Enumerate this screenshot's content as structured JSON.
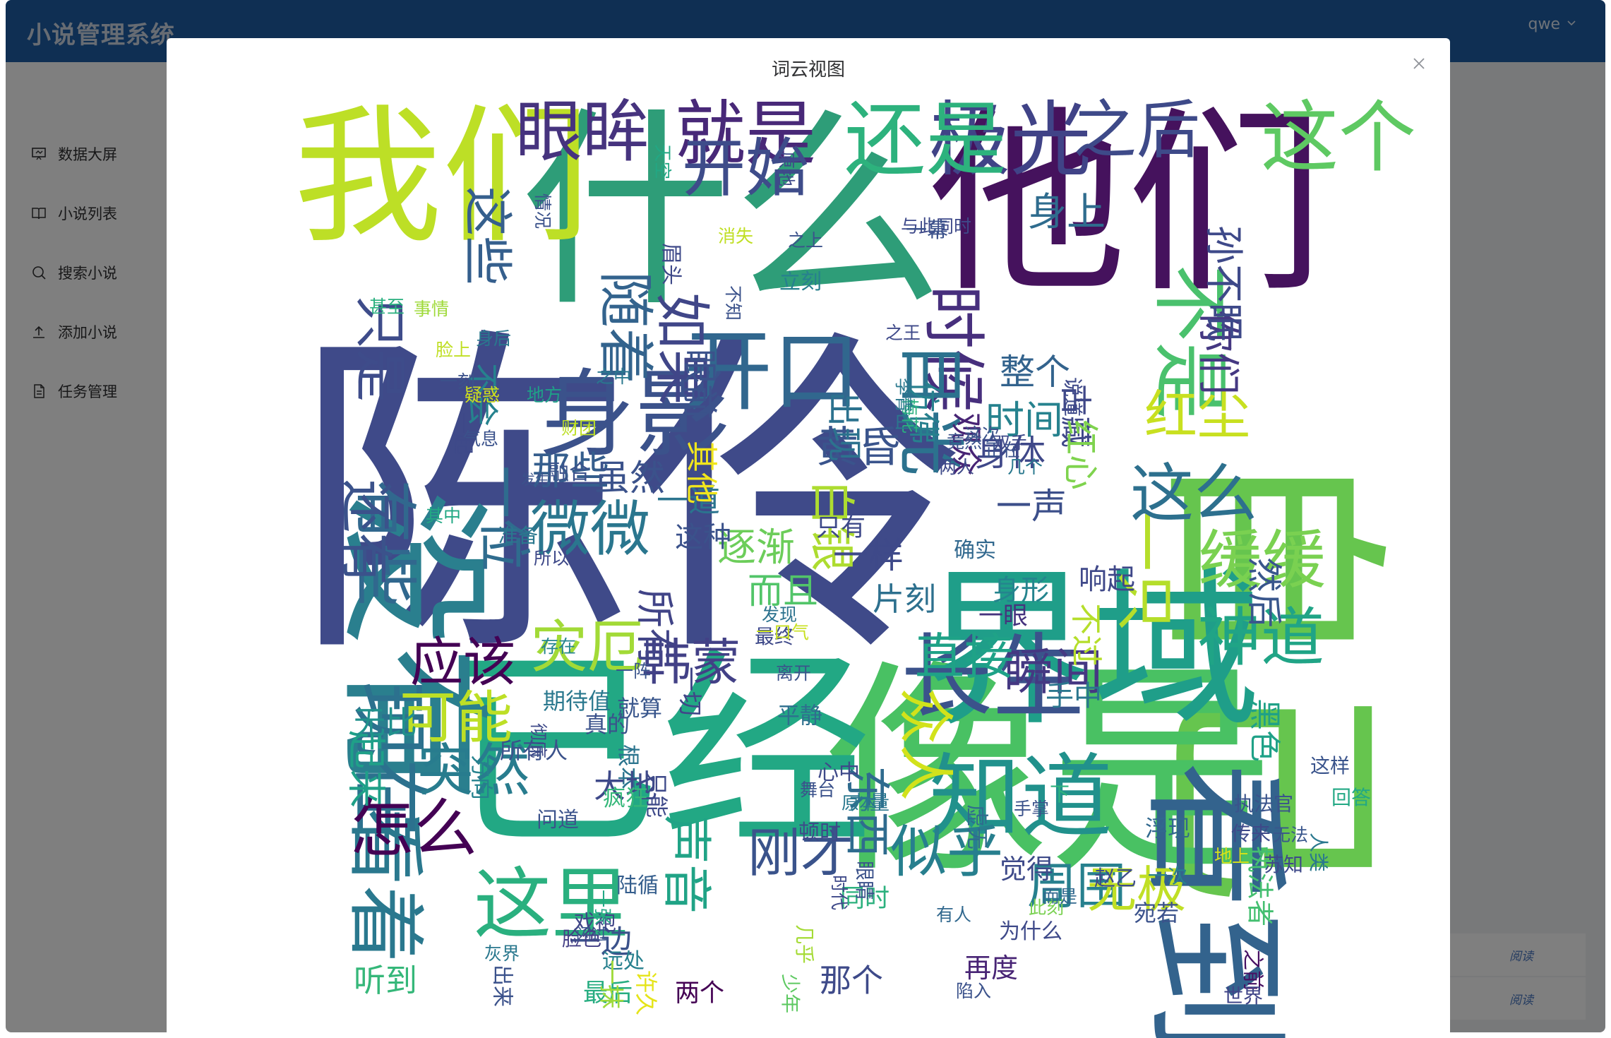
{
  "app": {
    "title": "小说管理系统",
    "user": "qwe"
  },
  "sidebar": {
    "items": [
      {
        "label": "数据大屏",
        "icon": "dashboard-screen-icon"
      },
      {
        "label": "小说列表",
        "icon": "book-icon"
      },
      {
        "label": "搜索小说",
        "icon": "search-icon"
      },
      {
        "label": "添加小说",
        "icon": "upload-icon"
      },
      {
        "label": "任务管理",
        "icon": "document-icon"
      }
    ]
  },
  "table": {
    "read_links": [
      "阅读",
      "阅读"
    ]
  },
  "modal": {
    "title": "词云视图"
  },
  "colors": {
    "header": "#1f5fa6",
    "palette": "viridis"
  },
  "word_cloud": [
    {
      "t": "陈伶",
      "c": "#3f4a89"
    },
    {
      "t": "什么",
      "c": "#2e9d78"
    },
    {
      "t": "他们",
      "c": "#45125d"
    },
    {
      "t": "自己",
      "c": "#66c54e"
    },
    {
      "t": "像是",
      "c": "#49c163"
    },
    {
      "t": "已经",
      "c": "#22a884"
    },
    {
      "t": "没有",
      "c": "#2a7f8e"
    },
    {
      "t": "我们",
      "c": "#bddf26"
    },
    {
      "t": "界域",
      "c": "#1f9e89"
    },
    {
      "t": "看到",
      "c": "#33638d"
    },
    {
      "t": "身影",
      "c": "#3b528b"
    },
    {
      "t": "开口",
      "c": "#31678e"
    },
    {
      "t": "现在",
      "c": "#2c718e"
    },
    {
      "t": "知道",
      "c": "#21918c"
    },
    {
      "t": "长生",
      "c": "#3b528b"
    },
    {
      "t": "看着",
      "c": "#2a788e"
    },
    {
      "t": "这里",
      "c": "#2ab07f"
    },
    {
      "t": "极光",
      "c": "#404387"
    },
    {
      "t": "还是",
      "c": "#2db27d"
    },
    {
      "t": "就是",
      "c": "#482878"
    },
    {
      "t": "这个",
      "c": "#5ec962"
    },
    {
      "t": "之后",
      "c": "#3e4a89"
    },
    {
      "t": "眼眸",
      "c": "#46337e"
    },
    {
      "t": "不是",
      "c": "#4ac16d"
    },
    {
      "t": "时候",
      "c": "#472f7d"
    },
    {
      "t": "开始",
      "c": "#3e4c8a"
    },
    {
      "t": "随着",
      "c": "#33638d"
    },
    {
      "t": "如果",
      "c": "#404688"
    },
    {
      "t": "目光",
      "c": "#2c728e"
    },
    {
      "t": "一只",
      "c": "#b5de2b"
    },
    {
      "t": "红尘",
      "c": "#c8e020"
    },
    {
      "t": "这么",
      "c": "#2d708e"
    },
    {
      "t": "缓缓",
      "c": "#7ad151"
    },
    {
      "t": "神道",
      "c": "#20a486"
    },
    {
      "t": "微微",
      "c": "#2a768e"
    },
    {
      "t": "有些",
      "c": "#31688e"
    },
    {
      "t": "还有",
      "c": "#3b528b"
    },
    {
      "t": "一位",
      "c": "#2f6c8e"
    },
    {
      "t": "只是",
      "c": "#3e4c8a"
    },
    {
      "t": "这些",
      "c": "#355f8d"
    },
    {
      "t": "怎么",
      "c": "#440154"
    },
    {
      "t": "突然",
      "c": "#287c8e"
    },
    {
      "t": "可能",
      "c": "#bddf26"
    },
    {
      "t": "应该",
      "c": "#440154"
    },
    {
      "t": "灾厄",
      "c": "#a2da37"
    },
    {
      "t": "韩蒙",
      "c": "#424086"
    },
    {
      "t": "声音",
      "c": "#20a386"
    },
    {
      "t": "刚才",
      "c": "#3a538b"
    },
    {
      "t": "似乎",
      "c": "#277f8e"
    },
    {
      "t": "周围",
      "c": "#27808e"
    },
    {
      "t": "无极",
      "c": "#c0df25"
    },
    {
      "t": "瞬间",
      "c": "#453882"
    },
    {
      "t": "直接",
      "c": "#1fa287"
    },
    {
      "t": "众人",
      "c": "#d2e21b"
    },
    {
      "t": "东西",
      "c": "#2f6b8e"
    },
    {
      "t": "黄昏",
      "c": "#3a548c"
    },
    {
      "t": "白银",
      "c": "#addc30"
    },
    {
      "t": "时间",
      "c": "#26828e"
    },
    {
      "t": "身体",
      "c": "#3f4889"
    },
    {
      "t": "一声",
      "c": "#3c4f8a"
    },
    {
      "t": "逐渐",
      "c": "#6ccd5a"
    },
    {
      "t": "一样",
      "c": "#3e4989"
    },
    {
      "t": "所有",
      "c": "#414487"
    },
    {
      "t": "而且",
      "c": "#52c569"
    },
    {
      "t": "那些",
      "c": "#355e8d"
    },
    {
      "t": "虽然",
      "c": "#3b528b"
    },
    {
      "t": "整个",
      "c": "#33638d"
    },
    {
      "t": "身上",
      "c": "#2f6c8e"
    },
    {
      "t": "眼前",
      "c": "#3b528b"
    },
    {
      "t": "出现",
      "c": "#2c728e"
    },
    {
      "t": "仿佛",
      "c": "#27808e"
    },
    {
      "t": "观众",
      "c": "#482475"
    },
    {
      "t": "古藏",
      "c": "#3f4788"
    },
    {
      "t": "红心",
      "c": "#7fd34e"
    },
    {
      "t": "你们",
      "c": "#453882"
    },
    {
      "t": "孙不眠",
      "c": "#3e4989"
    },
    {
      "t": "然后",
      "c": "#39568c"
    },
    {
      "t": "黑色",
      "c": "#1fa187"
    },
    {
      "t": "不过",
      "c": "#b5de2b"
    },
    {
      "t": "响起",
      "c": "#3f4889"
    },
    {
      "t": "片刻",
      "c": "#2d708e"
    },
    {
      "t": "起来",
      "c": "#1fa088"
    },
    {
      "t": "无比",
      "c": "#21918c"
    },
    {
      "t": "一道",
      "c": "#2b748e"
    },
    {
      "t": "这种",
      "c": "#3b528b"
    },
    {
      "t": "只有",
      "c": "#3e4989"
    },
    {
      "t": "其他",
      "c": "#f1e51d"
    },
    {
      "t": "不会",
      "c": "#26828e"
    },
    {
      "t": "一边",
      "c": "#3b528b"
    },
    {
      "t": "最后",
      "c": "#27ad81"
    },
    {
      "t": "听到",
      "c": "#35b779"
    },
    {
      "t": "两个",
      "c": "#440154"
    },
    {
      "t": "那个",
      "c": "#3e4a89"
    },
    {
      "t": "再度",
      "c": "#482475"
    },
    {
      "t": "一眼",
      "c": "#46337e"
    },
    {
      "t": "身形",
      "c": "#25848e"
    },
    {
      "t": "一切",
      "c": "#404688"
    },
    {
      "t": "平静",
      "c": "#2e6f8e"
    },
    {
      "t": "确实",
      "c": "#31688e"
    },
    {
      "t": "同时",
      "c": "#2cb17e"
    },
    {
      "t": "觉得",
      "c": "#3e4a89"
    },
    {
      "t": "浮现",
      "c": "#31688e"
    },
    {
      "t": "执法官",
      "c": "#3a538b"
    },
    {
      "t": "执法者",
      "c": "#44bf70"
    },
    {
      "t": "之前",
      "c": "#471063"
    },
    {
      "t": "世界",
      "c": "#404588"
    },
    {
      "t": "方向",
      "c": "#26828e"
    },
    {
      "t": "期待值",
      "c": "#2a788e"
    },
    {
      "t": "就算",
      "c": "#39568c"
    },
    {
      "t": "真的",
      "c": "#3b528b"
    },
    {
      "t": "根本",
      "c": "#2b748e"
    },
    {
      "t": "只能",
      "c": "#3e4989"
    },
    {
      "t": "所有人",
      "c": "#3b528b"
    },
    {
      "t": "大地",
      "c": "#3e4989"
    },
    {
      "t": "手中",
      "c": "#2a768e"
    },
    {
      "t": "疯狂",
      "c": "#35b779"
    },
    {
      "t": "问道",
      "c": "#3b528b"
    },
    {
      "t": "陆循",
      "c": "#355e8d"
    },
    {
      "t": "脸色",
      "c": "#433e85"
    },
    {
      "t": "远处",
      "c": "#27808e"
    },
    {
      "t": "一抹",
      "c": "#9fda3a"
    },
    {
      "t": "许久",
      "c": "#e5e419"
    },
    {
      "t": "戏袍",
      "c": "#404588"
    },
    {
      "t": "闪过",
      "c": "#39568c"
    },
    {
      "t": "为什么",
      "c": "#3e4989"
    },
    {
      "t": "有人",
      "c": "#31688e"
    },
    {
      "t": "陷入",
      "c": "#3b528b"
    },
    {
      "t": "此刻",
      "c": "#7ad151"
    },
    {
      "t": "而是",
      "c": "#31688e"
    },
    {
      "t": "赵乙",
      "c": "#3e4c8a"
    },
    {
      "t": "宛若",
      "c": "#3b528b"
    },
    {
      "t": "一次",
      "c": "#27808e"
    },
    {
      "t": "苏知",
      "c": "#3e4989"
    },
    {
      "t": "地上",
      "c": "#d8e219"
    },
    {
      "t": "无法",
      "c": "#39568c"
    },
    {
      "t": "传来",
      "c": "#3e4989"
    },
    {
      "t": "人类",
      "c": "#2a788e"
    },
    {
      "t": "回答",
      "c": "#22a884"
    },
    {
      "t": "这样",
      "c": "#3a548c"
    },
    {
      "t": "下",
      "c": "#2db27d"
    },
    {
      "t": "虚无",
      "c": "#2f6c8e"
    },
    {
      "t": "手掌",
      "c": "#3b528b"
    },
    {
      "t": "原本",
      "c": "#2a788e"
    },
    {
      "t": "心中",
      "c": "#3e4989"
    },
    {
      "t": "舞台",
      "c": "#3b528b"
    },
    {
      "t": "力量",
      "c": "#2a768e"
    },
    {
      "t": "顿时",
      "c": "#3e4989"
    },
    {
      "t": "眼睛",
      "c": "#3b528b"
    },
    {
      "t": "时代",
      "c": "#3e4989"
    },
    {
      "t": "几乎",
      "c": "#a5db36"
    },
    {
      "t": "少年",
      "c": "#5ec962"
    },
    {
      "t": "出来",
      "c": "#3b528b"
    },
    {
      "t": "灰界",
      "c": "#2a788e"
    },
    {
      "t": "一张",
      "c": "#22a884"
    },
    {
      "t": "存在",
      "c": "#25848e"
    },
    {
      "t": "一阵",
      "c": "#3a548c"
    },
    {
      "t": "彻底",
      "c": "#3e4989"
    },
    {
      "t": "离开",
      "c": "#3b528b"
    },
    {
      "t": "发现",
      "c": "#2c728e"
    },
    {
      "t": "最终",
      "c": "#3e4989"
    },
    {
      "t": "一口气",
      "c": "#c8e020"
    },
    {
      "t": "融合",
      "c": "#3b528b"
    },
    {
      "t": "所以",
      "c": "#3e4989"
    },
    {
      "t": "准备",
      "c": "#2a788e"
    },
    {
      "t": "其中",
      "c": "#22a884"
    },
    {
      "t": "发生",
      "c": "#3b528b"
    },
    {
      "t": "一起",
      "c": "#3e4989"
    },
    {
      "t": "气息",
      "c": "#3b528b"
    },
    {
      "t": "财团",
      "c": "#bddf26"
    },
    {
      "t": "地方",
      "c": "#1fa088"
    },
    {
      "t": "之中",
      "c": "#2a788e"
    },
    {
      "t": "身后",
      "c": "#2a788e"
    },
    {
      "t": "一刻",
      "c": "#3b528b"
    },
    {
      "t": "疑惑",
      "c": "#d2e21b"
    },
    {
      "t": "事情",
      "c": "#9fda3a"
    },
    {
      "t": "脸上",
      "c": "#c0df25"
    },
    {
      "t": "甚至",
      "c": "#2ab07f"
    },
    {
      "t": "情况",
      "c": "#3b528b"
    },
    {
      "t": "天空",
      "c": "#22a884"
    },
    {
      "t": "眉头",
      "c": "#3e4989"
    },
    {
      "t": "消失",
      "c": "#c0df25"
    },
    {
      "t": "不知",
      "c": "#3b528b"
    },
    {
      "t": "原地",
      "c": "#3e4989"
    },
    {
      "t": "立刻",
      "c": "#27808e"
    },
    {
      "t": "之上",
      "c": "#3b528b"
    },
    {
      "t": "与此同时",
      "c": "#3e4989"
    },
    {
      "t": "一幕",
      "c": "#3b528b"
    },
    {
      "t": "梅花",
      "c": "#2ab07f"
    },
    {
      "t": "说道",
      "c": "#3e4989"
    },
    {
      "t": "这次",
      "c": "#3b528b"
    },
    {
      "t": "李青山",
      "c": "#2a788e"
    },
    {
      "t": "之王",
      "c": "#3e4989"
    },
    {
      "t": "正在",
      "c": "#3b528b"
    },
    {
      "t": "双手",
      "c": "#3e4989"
    },
    {
      "t": "竟然",
      "c": "#3b528b"
    },
    {
      "t": "几个",
      "c": "#2a788e"
    },
    {
      "t": "两人",
      "c": "#3e4989"
    }
  ]
}
